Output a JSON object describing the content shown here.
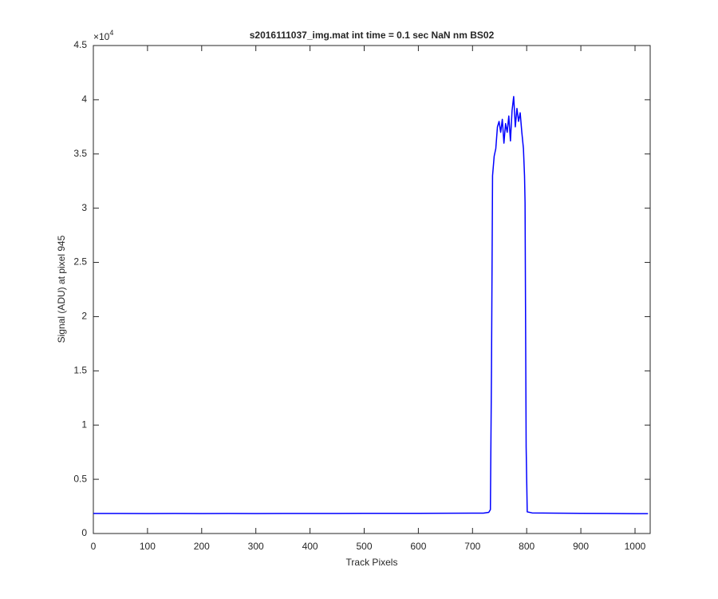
{
  "chart_data": {
    "type": "line",
    "title": "s2016111037_img.mat int time = 0.1 sec  NaN nm BS02",
    "x_label": "Track Pixels",
    "y_label": "Signal (ADU) at pixel 945",
    "y_scale_label": {
      "base": "×10",
      "exponent": "4"
    },
    "x": [
      0,
      50,
      100,
      150,
      200,
      250,
      300,
      350,
      400,
      450,
      500,
      550,
      600,
      650,
      700,
      720,
      730,
      733,
      735,
      737,
      740,
      743,
      746,
      749,
      752,
      755,
      758,
      761,
      764,
      767,
      770,
      773,
      776,
      779,
      782,
      785,
      788,
      791,
      794,
      796,
      797,
      799,
      801,
      810,
      850,
      900,
      950,
      1000,
      1024
    ],
    "series": [
      {
        "color": "#0000ff",
        "values": [
          0.185,
          0.185,
          0.184,
          0.185,
          0.184,
          0.185,
          0.184,
          0.185,
          0.185,
          0.185,
          0.186,
          0.186,
          0.186,
          0.187,
          0.188,
          0.188,
          0.195,
          0.22,
          1.5,
          3.3,
          3.48,
          3.55,
          3.75,
          3.8,
          3.7,
          3.82,
          3.6,
          3.78,
          3.7,
          3.85,
          3.62,
          3.9,
          4.03,
          3.75,
          3.92,
          3.8,
          3.88,
          3.7,
          3.55,
          3.3,
          3.05,
          0.8,
          0.2,
          0.19,
          0.188,
          0.186,
          0.185,
          0.183,
          0.183
        ]
      }
    ],
    "xlim": [
      0,
      1028
    ],
    "ylim": [
      0,
      4.5
    ],
    "xticks": [
      0,
      100,
      200,
      300,
      400,
      500,
      600,
      700,
      800,
      900,
      1000
    ],
    "yticks": [
      0,
      0.5,
      1,
      1.5,
      2,
      2.5,
      3,
      3.5,
      4,
      4.5
    ],
    "grid": false
  }
}
